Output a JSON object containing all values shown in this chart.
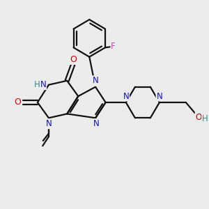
{
  "background_color": "#ececec",
  "bond_color": "#111111",
  "N_color": "#1010cc",
  "O_color": "#cc0000",
  "F_color": "#cc44aa",
  "H_color": "#3a8a8a",
  "line_width": 1.6,
  "figsize": [
    3.0,
    3.0
  ],
  "dpi": 100,
  "xlim": [
    0,
    10
  ],
  "ylim": [
    0,
    10
  ]
}
